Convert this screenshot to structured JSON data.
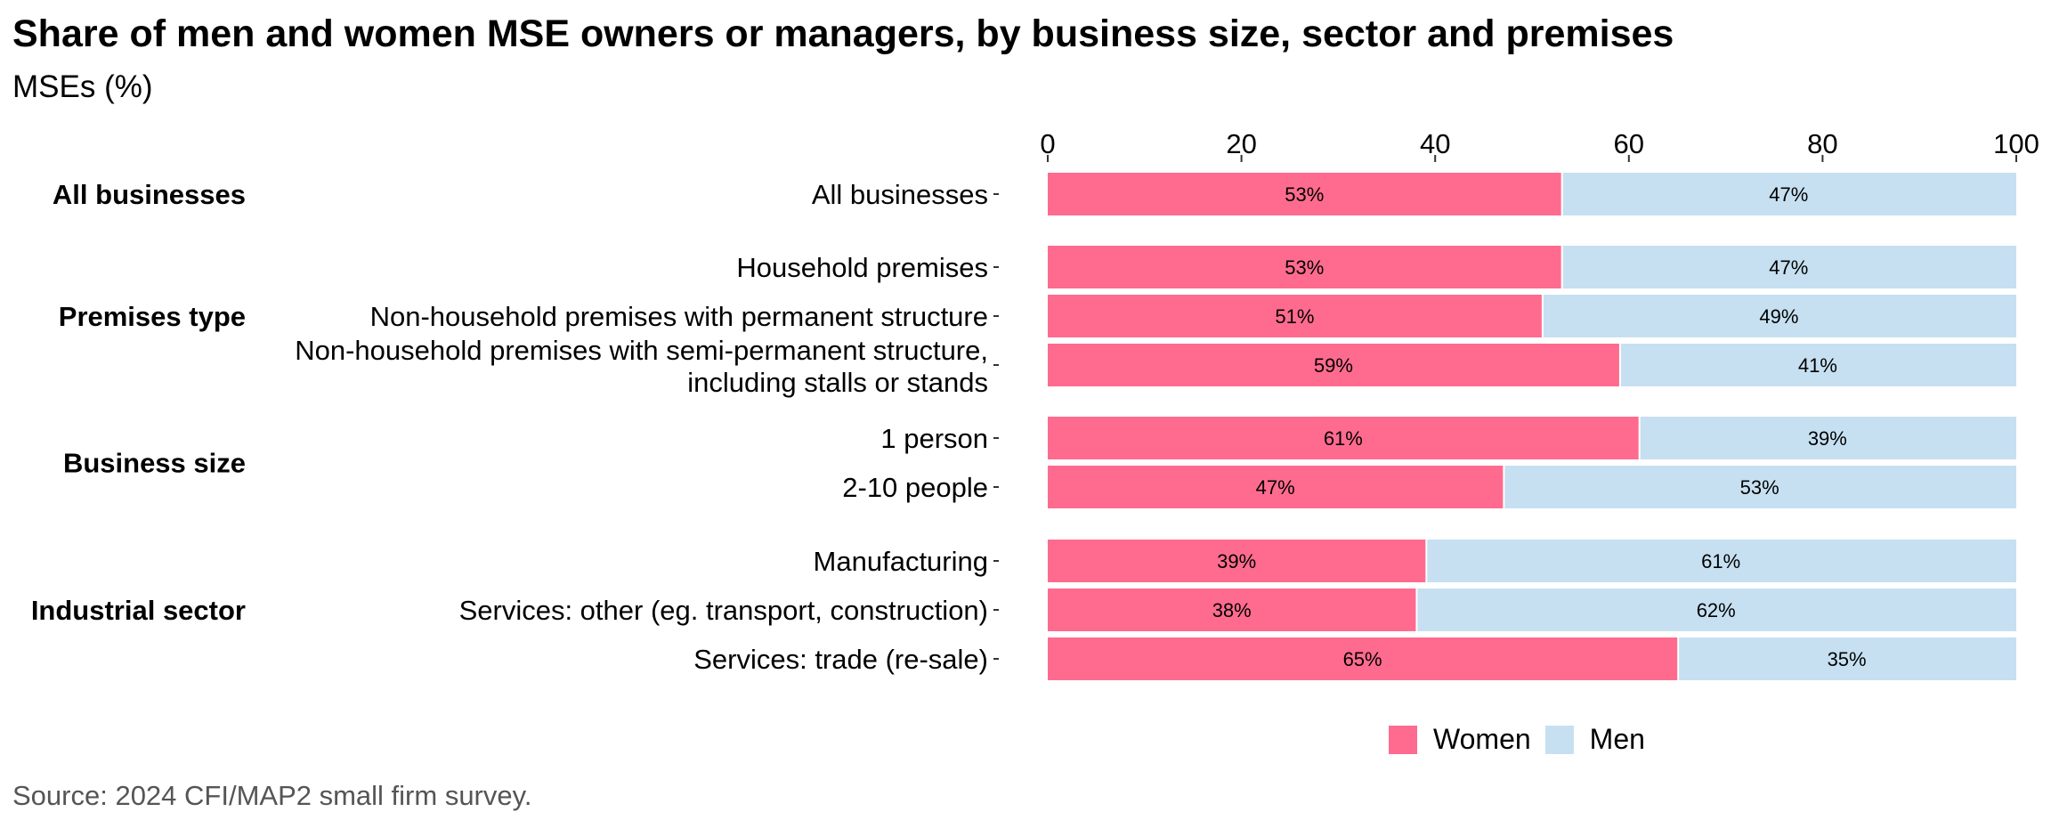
{
  "title": "Share of men and women MSE owners or managers, by business size, sector and premises",
  "subtitle": "MSEs (%)",
  "source": "Source: 2024 CFI/MAP2 small firm survey.",
  "colors": {
    "women": "#ff6b8f",
    "men": "#c6e0f1"
  },
  "chart_data": {
    "type": "bar",
    "orientation": "horizontal",
    "stacked": true,
    "xlim": [
      0,
      100
    ],
    "x_ticks": [
      0,
      20,
      40,
      60,
      80,
      100
    ],
    "legend_position": "bottom",
    "grid": false,
    "series": [
      {
        "name": "Women",
        "color": "#ff6b8f"
      },
      {
        "name": "Men",
        "color": "#c6e0f1"
      }
    ],
    "groups": [
      {
        "label": "All businesses",
        "rows": [
          {
            "label": [
              "All businesses"
            ],
            "women": 53,
            "men": 47,
            "women_label": "53%",
            "men_label": "47%"
          }
        ]
      },
      {
        "label": "Premises type",
        "rows": [
          {
            "label": [
              "Household premises"
            ],
            "women": 53,
            "men": 47,
            "women_label": "53%",
            "men_label": "47%"
          },
          {
            "label": [
              "Non-household premises with permanent structure"
            ],
            "women": 51,
            "men": 49,
            "women_label": "51%",
            "men_label": "49%"
          },
          {
            "label": [
              "Non-household premises with semi-permanent structure,",
              "including stalls or stands"
            ],
            "women": 59,
            "men": 41,
            "women_label": "59%",
            "men_label": "41%"
          }
        ]
      },
      {
        "label": "Business size",
        "rows": [
          {
            "label": [
              "1 person"
            ],
            "women": 61,
            "men": 39,
            "women_label": "61%",
            "men_label": "39%"
          },
          {
            "label": [
              "2-10 people"
            ],
            "women": 47,
            "men": 53,
            "women_label": "47%",
            "men_label": "53%"
          }
        ]
      },
      {
        "label": "Industrial sector",
        "rows": [
          {
            "label": [
              "Manufacturing"
            ],
            "women": 39,
            "men": 61,
            "women_label": "39%",
            "men_label": "61%"
          },
          {
            "label": [
              "Services: other (eg. transport, construction)"
            ],
            "women": 38,
            "men": 62,
            "women_label": "38%",
            "men_label": "62%"
          },
          {
            "label": [
              "Services: trade (re-sale)"
            ],
            "women": 65,
            "men": 35,
            "women_label": "65%",
            "men_label": "35%"
          }
        ]
      }
    ]
  }
}
